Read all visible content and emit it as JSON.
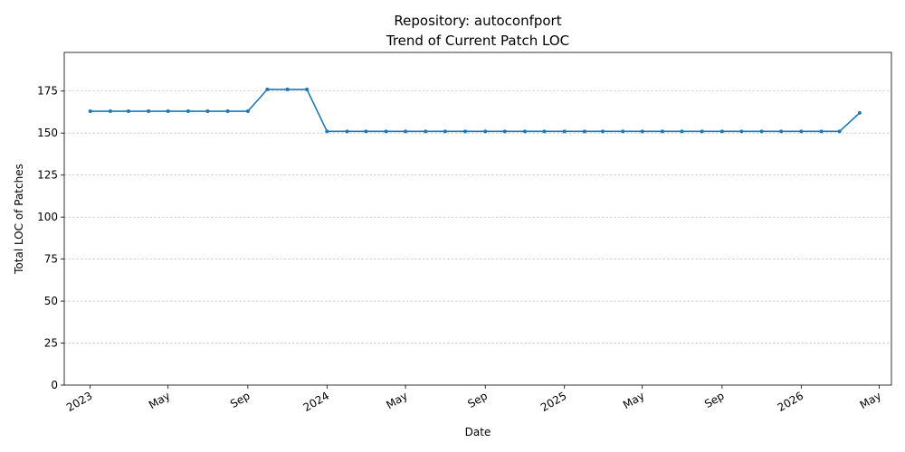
{
  "chart_data": {
    "type": "line",
    "title": "Repository: autoconfport",
    "subtitle": "Trend of Current Patch LOC",
    "xlabel": "Date",
    "ylabel": "Total LOC of Patches",
    "ylim": [
      0,
      198
    ],
    "yticks": [
      0,
      25,
      50,
      75,
      100,
      125,
      150,
      175
    ],
    "xlim": [
      "2022-11-22",
      "2026-05-20"
    ],
    "xticks": [
      {
        "date": "2023-01-01",
        "label": "2023"
      },
      {
        "date": "2023-05-01",
        "label": "May"
      },
      {
        "date": "2023-09-01",
        "label": "Sep"
      },
      {
        "date": "2024-01-01",
        "label": "2024"
      },
      {
        "date": "2024-05-01",
        "label": "May"
      },
      {
        "date": "2024-09-01",
        "label": "Sep"
      },
      {
        "date": "2025-01-01",
        "label": "2025"
      },
      {
        "date": "2025-05-01",
        "label": "May"
      },
      {
        "date": "2025-09-01",
        "label": "Sep"
      },
      {
        "date": "2026-01-01",
        "label": "2026"
      },
      {
        "date": "2026-05-01",
        "label": "May"
      }
    ],
    "grid": "y-dashed",
    "series": [
      {
        "color": "#1f77b4",
        "x": [
          "2023-01-01",
          "2023-02-01",
          "2023-03-01",
          "2023-04-01",
          "2023-05-01",
          "2023-06-01",
          "2023-07-01",
          "2023-08-01",
          "2023-09-01",
          "2023-10-01",
          "2023-11-01",
          "2023-12-01",
          "2024-01-01",
          "2024-02-01",
          "2024-03-01",
          "2024-04-01",
          "2024-05-01",
          "2024-06-01",
          "2024-07-01",
          "2024-08-01",
          "2024-09-01",
          "2024-10-01",
          "2024-11-01",
          "2024-12-01",
          "2025-01-01",
          "2025-02-01",
          "2025-03-01",
          "2025-04-01",
          "2025-05-01",
          "2025-06-01",
          "2025-07-01",
          "2025-08-01",
          "2025-09-01",
          "2025-10-01",
          "2025-11-01",
          "2025-12-01",
          "2026-01-01",
          "2026-02-01",
          "2026-03-01",
          "2026-04-01"
        ],
        "y": [
          163,
          163,
          163,
          163,
          163,
          163,
          163,
          163,
          163,
          176,
          176,
          176,
          151,
          151,
          151,
          151,
          151,
          151,
          151,
          151,
          151,
          151,
          151,
          151,
          151,
          151,
          151,
          151,
          151,
          151,
          151,
          151,
          151,
          151,
          151,
          151,
          151,
          151,
          151,
          162
        ]
      }
    ]
  }
}
